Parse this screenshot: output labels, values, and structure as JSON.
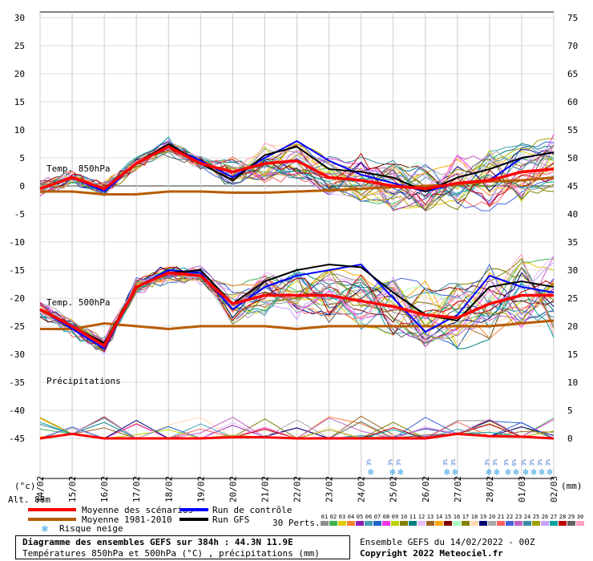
{
  "chart_data": {
    "type": "line",
    "x_dates": [
      "14/02",
      "15/02",
      "16/02",
      "17/02",
      "18/02",
      "19/02",
      "20/02",
      "21/02",
      "22/02",
      "23/02",
      "24/02",
      "25/02",
      "26/02",
      "27/02",
      "28/02",
      "01/03",
      "02/03"
    ],
    "y_left_ticks": [
      30,
      25,
      20,
      15,
      10,
      5,
      0,
      -5,
      -10,
      -15,
      -20,
      -25,
      -30,
      -35,
      -40,
      -45
    ],
    "y_right_ticks": [
      75,
      70,
      65,
      60,
      55,
      50,
      45,
      40,
      35,
      30,
      25,
      20,
      15,
      10,
      5,
      0
    ],
    "left_unit": "(°c)",
    "right_unit": "(mm)",
    "altitude": "Alt. 88m",
    "section_labels": {
      "t850": "Temp. 850hPa",
      "t500": "Temp. 500hPa",
      "precip": "Précipitations"
    },
    "series": {
      "t850_mean": [
        -0.5,
        1.5,
        -0.5,
        4,
        7,
        4,
        2.5,
        4,
        4.5,
        1.5,
        1,
        0,
        -0.5,
        0.5,
        1,
        2.5,
        3
      ],
      "t850_clim": [
        -1,
        -1,
        -1.5,
        -1.5,
        -1,
        -1,
        -1.2,
        -1.2,
        -1,
        -0.8,
        -0.5,
        -0.2,
        0,
        0.3,
        0.8,
        1,
        1.5
      ],
      "t850_control": [
        -0.5,
        1.5,
        -1,
        4,
        7,
        4.5,
        1.5,
        5,
        8,
        4.5,
        2,
        0.5,
        -1,
        0.5,
        1,
        5,
        6
      ],
      "t850_gfs": [
        -0.5,
        1.5,
        -0.5,
        4,
        7.5,
        4,
        1,
        5.5,
        7,
        3,
        2.5,
        1.5,
        -1,
        1.5,
        3,
        5,
        6
      ],
      "t500_mean": [
        -22,
        -25,
        -28.5,
        -18,
        -15.5,
        -16,
        -21,
        -19.5,
        -19.5,
        -19.5,
        -20.5,
        -21.5,
        -23,
        -23.5,
        -21,
        -19.5,
        -19.5
      ],
      "t500_clim": [
        -25.5,
        -25.5,
        -24.5,
        -25,
        -25.5,
        -25,
        -25,
        -25,
        -25.5,
        -25,
        -25,
        -25,
        -25,
        -25,
        -25,
        -24.5,
        -24
      ],
      "t500_control": [
        -22,
        -25.5,
        -29,
        -18,
        -15,
        -15.5,
        -22,
        -18,
        -16,
        -15,
        -14,
        -20,
        -26,
        -23,
        -16,
        -18,
        -19
      ],
      "t500_gfs": [
        -22,
        -25,
        -28,
        -18,
        -15.5,
        -15,
        -21,
        -17,
        -15,
        -14,
        -14.5,
        -19,
        -23,
        -24,
        -18,
        -17,
        -18
      ],
      "precip_mean": [
        0,
        0.8,
        0,
        0,
        0,
        0,
        0.2,
        0.2,
        0,
        0,
        0,
        0,
        0,
        0.8,
        0.4,
        0.3,
        0
      ]
    },
    "snow_risk_days": [
      {
        "day": 10.3,
        "pct": [
          "3%"
        ]
      },
      {
        "day": 11.1,
        "pct": [
          "3%",
          "3%"
        ]
      },
      {
        "day": 12.8,
        "pct": [
          "3%",
          "3%"
        ]
      },
      {
        "day": 14.1,
        "pct": [
          "3%",
          "3%"
        ]
      },
      {
        "day": 14.7,
        "pct": [
          "3%",
          "6%"
        ]
      },
      {
        "day": 15.5,
        "pct": [
          "3%",
          "3%",
          "3%",
          "3%"
        ]
      }
    ]
  },
  "legend": {
    "mean": "Moyenne des scénarios",
    "clim": "Moyenne 1981-2010",
    "snow": "Risque neige",
    "control": "Run de contrôle",
    "gfs": "Run GFS",
    "perts": "30 Perts.",
    "pert_numbers": [
      "01",
      "02",
      "03",
      "04",
      "05",
      "06",
      "07",
      "08",
      "09",
      "10",
      "11",
      "12",
      "13",
      "14",
      "15",
      "16",
      "17",
      "18",
      "19",
      "20",
      "21",
      "22",
      "23",
      "24",
      "25",
      "26",
      "27",
      "28",
      "29",
      "30"
    ],
    "pert_colors": [
      "#8c8c8c",
      "#3cb44b",
      "#e6c800",
      "#f58231",
      "#911eb4",
      "#46a0b4",
      "#1e64c8",
      "#f032e6",
      "#bcd200",
      "#7f7f00",
      "#008080",
      "#e6beff",
      "#9a6324",
      "#ffaa00",
      "#800000",
      "#aaffc3",
      "#808000",
      "#ffd8b1",
      "#000075",
      "#a9a9a9",
      "#ff6060",
      "#4363d8",
      "#c060c0",
      "#3c8ca0",
      "#a0a000",
      "#c8a0ff",
      "#00a0a0",
      "#c00000",
      "#606060",
      "#ffa0c0"
    ],
    "mean_color": "#ff0000",
    "clim_color": "#b85c00",
    "control_color": "#0000ff",
    "gfs_color": "#000000"
  },
  "footer": {
    "title": "Diagramme des ensembles GEFS sur 384h : 44.3N 11.9E",
    "subtitle": "Températures 850hPa et 500hPa (°C) , précipitations (mm)",
    "run": "Ensemble GEFS du 14/02/2022 - 00Z",
    "copyright": "Copyright 2022 Meteociel.fr"
  }
}
